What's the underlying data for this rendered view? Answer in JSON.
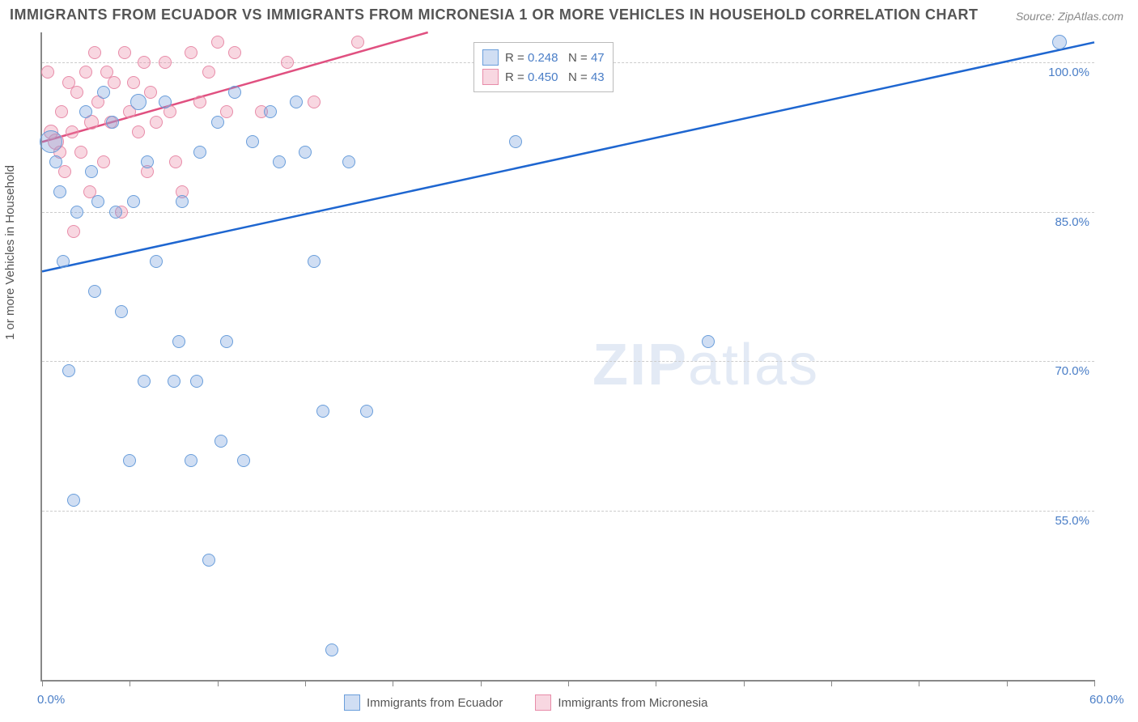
{
  "title": "IMMIGRANTS FROM ECUADOR VS IMMIGRANTS FROM MICRONESIA 1 OR MORE VEHICLES IN HOUSEHOLD CORRELATION CHART",
  "source": "Source: ZipAtlas.com",
  "y_axis_label": "1 or more Vehicles in Household",
  "watermark_main": "ZIP",
  "watermark_thin": "atlas",
  "chart": {
    "type": "scatter",
    "xlim": [
      0,
      60
    ],
    "ylim": [
      38,
      103
    ],
    "xtick_labels": [
      {
        "pos": 0.0,
        "text": "0.0%"
      },
      {
        "pos": 60.0,
        "text": "60.0%"
      }
    ],
    "xtick_positions": [
      0,
      5,
      10,
      15,
      20,
      25,
      30,
      35,
      40,
      45,
      50,
      55,
      60
    ],
    "ytick_labels": [
      {
        "pos": 100.0,
        "text": "100.0%"
      },
      {
        "pos": 85.0,
        "text": "85.0%"
      },
      {
        "pos": 70.0,
        "text": "70.0%"
      },
      {
        "pos": 55.0,
        "text": "55.0%"
      }
    ],
    "grid_y": [
      100.0,
      85.0,
      70.0,
      55.0
    ],
    "grid_color": "#cccccc",
    "background_color": "#ffffff",
    "axis_color": "#888888"
  },
  "series": [
    {
      "name": "Immigrants from Ecuador",
      "fill": "rgba(120,160,220,0.35)",
      "stroke": "#6a9edb",
      "line_color": "#1e66d0",
      "R": "0.248",
      "N": "47",
      "trend": {
        "x1": 0,
        "y1": 79,
        "x2": 60,
        "y2": 102
      },
      "points": [
        {
          "x": 0.5,
          "y": 92,
          "r": 14
        },
        {
          "x": 0.8,
          "y": 90,
          "r": 8
        },
        {
          "x": 1.0,
          "y": 87,
          "r": 8
        },
        {
          "x": 1.2,
          "y": 80,
          "r": 8
        },
        {
          "x": 1.5,
          "y": 69,
          "r": 8
        },
        {
          "x": 1.8,
          "y": 56,
          "r": 8
        },
        {
          "x": 2.0,
          "y": 85,
          "r": 8
        },
        {
          "x": 2.5,
          "y": 95,
          "r": 8
        },
        {
          "x": 2.8,
          "y": 89,
          "r": 8
        },
        {
          "x": 3.0,
          "y": 77,
          "r": 8
        },
        {
          "x": 3.2,
          "y": 86,
          "r": 8
        },
        {
          "x": 3.5,
          "y": 97,
          "r": 8
        },
        {
          "x": 4.0,
          "y": 94,
          "r": 8
        },
        {
          "x": 4.2,
          "y": 85,
          "r": 8
        },
        {
          "x": 4.5,
          "y": 75,
          "r": 8
        },
        {
          "x": 5.0,
          "y": 60,
          "r": 8
        },
        {
          "x": 5.2,
          "y": 86,
          "r": 8
        },
        {
          "x": 5.5,
          "y": 96,
          "r": 10
        },
        {
          "x": 5.8,
          "y": 68,
          "r": 8
        },
        {
          "x": 6.0,
          "y": 90,
          "r": 8
        },
        {
          "x": 6.5,
          "y": 80,
          "r": 8
        },
        {
          "x": 7.0,
          "y": 96,
          "r": 8
        },
        {
          "x": 7.5,
          "y": 68,
          "r": 8
        },
        {
          "x": 7.8,
          "y": 72,
          "r": 8
        },
        {
          "x": 8.0,
          "y": 86,
          "r": 8
        },
        {
          "x": 8.5,
          "y": 60,
          "r": 8
        },
        {
          "x": 8.8,
          "y": 68,
          "r": 8
        },
        {
          "x": 9.0,
          "y": 91,
          "r": 8
        },
        {
          "x": 9.5,
          "y": 50,
          "r": 8
        },
        {
          "x": 10.0,
          "y": 94,
          "r": 8
        },
        {
          "x": 10.2,
          "y": 62,
          "r": 8
        },
        {
          "x": 10.5,
          "y": 72,
          "r": 8
        },
        {
          "x": 11.0,
          "y": 97,
          "r": 8
        },
        {
          "x": 11.5,
          "y": 60,
          "r": 8
        },
        {
          "x": 12.0,
          "y": 92,
          "r": 8
        },
        {
          "x": 13.0,
          "y": 95,
          "r": 8
        },
        {
          "x": 13.5,
          "y": 90,
          "r": 8
        },
        {
          "x": 14.5,
          "y": 96,
          "r": 8
        },
        {
          "x": 15.0,
          "y": 91,
          "r": 8
        },
        {
          "x": 15.5,
          "y": 80,
          "r": 8
        },
        {
          "x": 16.0,
          "y": 65,
          "r": 8
        },
        {
          "x": 16.5,
          "y": 41,
          "r": 8
        },
        {
          "x": 17.5,
          "y": 90,
          "r": 8
        },
        {
          "x": 18.5,
          "y": 65,
          "r": 8
        },
        {
          "x": 27.0,
          "y": 92,
          "r": 8
        },
        {
          "x": 38.0,
          "y": 72,
          "r": 8
        },
        {
          "x": 58.0,
          "y": 102,
          "r": 9
        }
      ]
    },
    {
      "name": "Immigrants from Micronesia",
      "fill": "rgba(235,140,170,0.35)",
      "stroke": "#e88ca9",
      "line_color": "#e05080",
      "R": "0.450",
      "N": "43",
      "trend": {
        "x1": 0,
        "y1": 92,
        "x2": 22,
        "y2": 103
      },
      "points": [
        {
          "x": 0.3,
          "y": 99,
          "r": 8
        },
        {
          "x": 0.5,
          "y": 93,
          "r": 9
        },
        {
          "x": 0.8,
          "y": 92,
          "r": 10
        },
        {
          "x": 1.0,
          "y": 91,
          "r": 8
        },
        {
          "x": 1.1,
          "y": 95,
          "r": 8
        },
        {
          "x": 1.3,
          "y": 89,
          "r": 8
        },
        {
          "x": 1.5,
          "y": 98,
          "r": 8
        },
        {
          "x": 1.7,
          "y": 93,
          "r": 8
        },
        {
          "x": 1.8,
          "y": 83,
          "r": 8
        },
        {
          "x": 2.0,
          "y": 97,
          "r": 8
        },
        {
          "x": 2.2,
          "y": 91,
          "r": 8
        },
        {
          "x": 2.5,
          "y": 99,
          "r": 8
        },
        {
          "x": 2.7,
          "y": 87,
          "r": 8
        },
        {
          "x": 2.8,
          "y": 94,
          "r": 9
        },
        {
          "x": 3.0,
          "y": 101,
          "r": 8
        },
        {
          "x": 3.2,
          "y": 96,
          "r": 8
        },
        {
          "x": 3.5,
          "y": 90,
          "r": 8
        },
        {
          "x": 3.7,
          "y": 99,
          "r": 8
        },
        {
          "x": 3.9,
          "y": 94,
          "r": 8
        },
        {
          "x": 4.1,
          "y": 98,
          "r": 8
        },
        {
          "x": 4.5,
          "y": 85,
          "r": 8
        },
        {
          "x": 4.7,
          "y": 101,
          "r": 8
        },
        {
          "x": 5.0,
          "y": 95,
          "r": 8
        },
        {
          "x": 5.2,
          "y": 98,
          "r": 8
        },
        {
          "x": 5.5,
          "y": 93,
          "r": 8
        },
        {
          "x": 5.8,
          "y": 100,
          "r": 8
        },
        {
          "x": 6.0,
          "y": 89,
          "r": 8
        },
        {
          "x": 6.2,
          "y": 97,
          "r": 8
        },
        {
          "x": 6.5,
          "y": 94,
          "r": 8
        },
        {
          "x": 7.0,
          "y": 100,
          "r": 8
        },
        {
          "x": 7.3,
          "y": 95,
          "r": 8
        },
        {
          "x": 7.6,
          "y": 90,
          "r": 8
        },
        {
          "x": 8.0,
          "y": 87,
          "r": 8
        },
        {
          "x": 8.5,
          "y": 101,
          "r": 8
        },
        {
          "x": 9.0,
          "y": 96,
          "r": 8
        },
        {
          "x": 9.5,
          "y": 99,
          "r": 8
        },
        {
          "x": 10.0,
          "y": 102,
          "r": 8
        },
        {
          "x": 10.5,
          "y": 95,
          "r": 8
        },
        {
          "x": 11.0,
          "y": 101,
          "r": 8
        },
        {
          "x": 12.5,
          "y": 95,
          "r": 8
        },
        {
          "x": 14.0,
          "y": 100,
          "r": 8
        },
        {
          "x": 15.5,
          "y": 96,
          "r": 8
        },
        {
          "x": 18.0,
          "y": 102,
          "r": 8
        }
      ]
    }
  ],
  "legend_labels": {
    "r_eq": "R = ",
    "n_eq": "N = "
  }
}
